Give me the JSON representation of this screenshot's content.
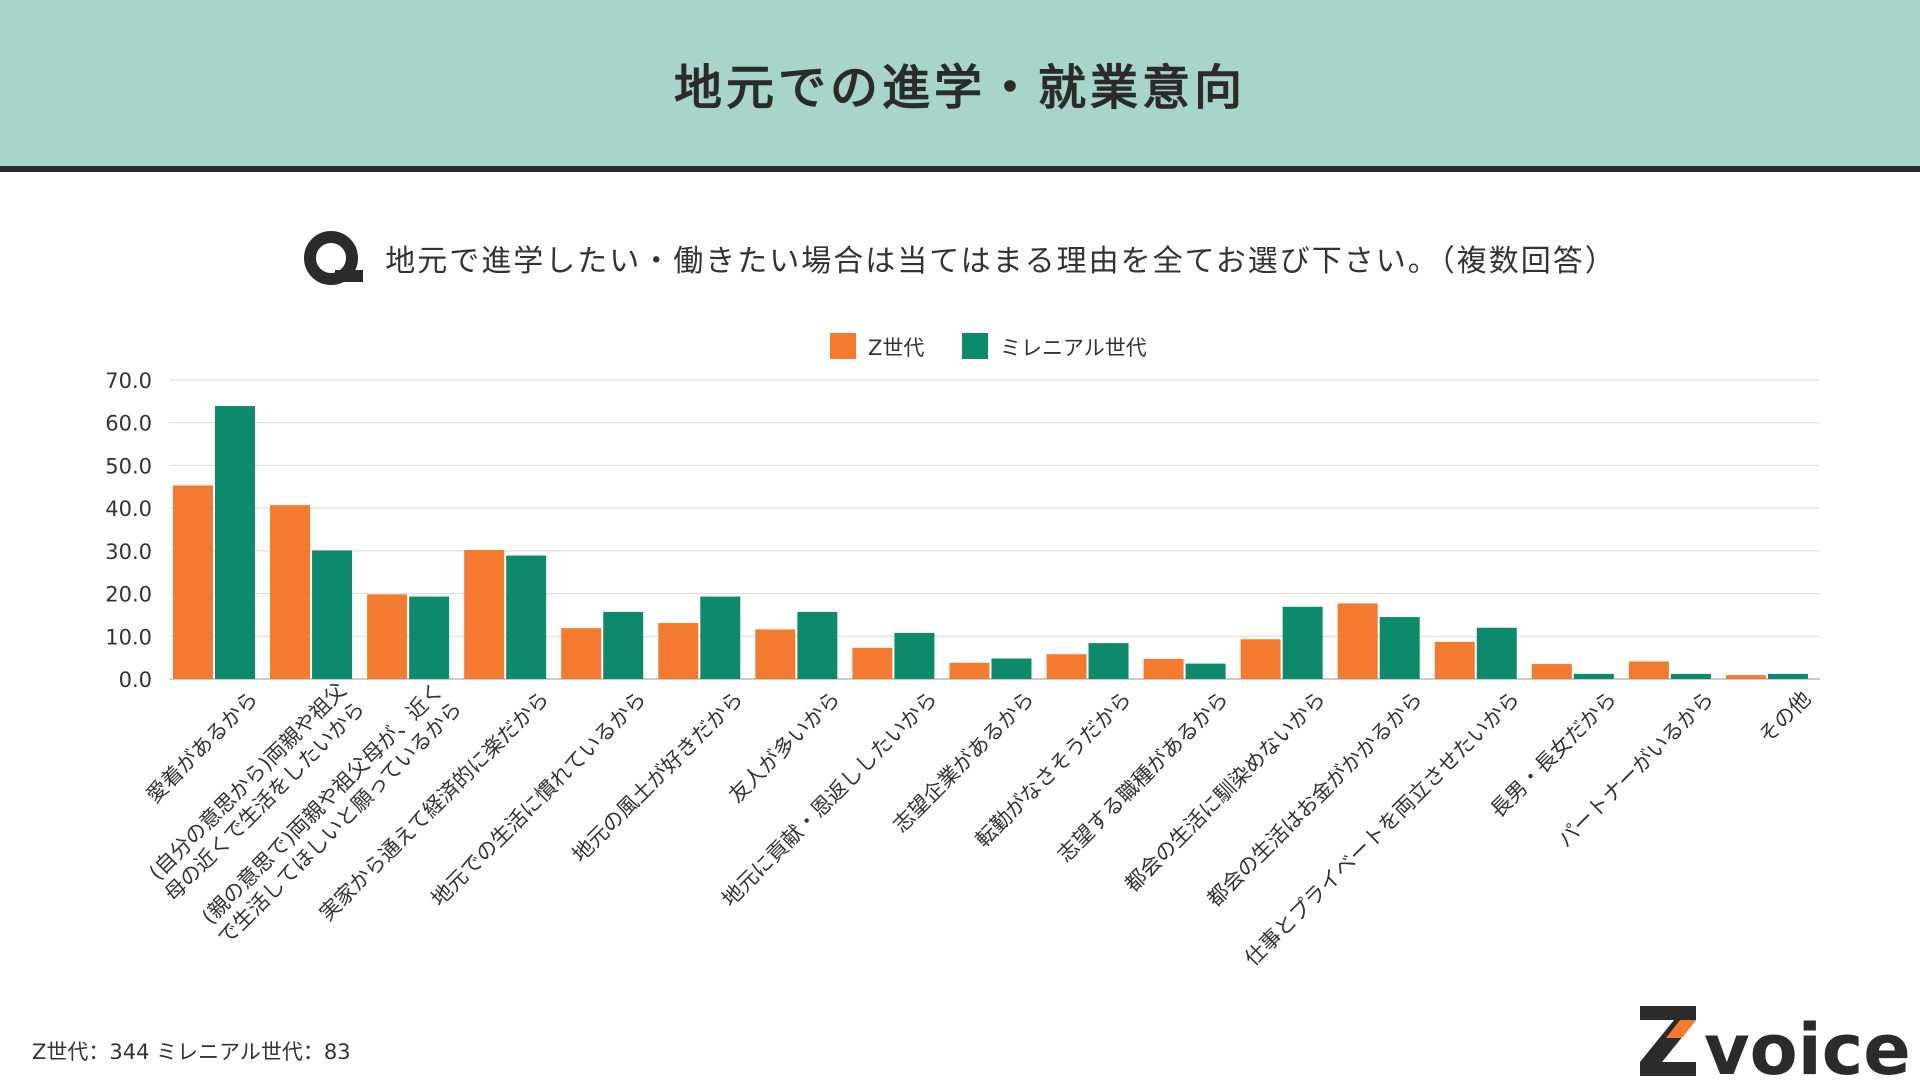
{
  "header": {
    "title": "地元での進学・就業意向"
  },
  "question": {
    "text": "地元で進学したい・働きたい場合は当てはまる理由を全てお選び下さい。（複数回答）"
  },
  "colors": {
    "z": "#f47a30",
    "millennial": "#0d8a6b",
    "header_bg": "#a7d5c9"
  },
  "chart_data": {
    "type": "bar",
    "title": "",
    "xlabel": "",
    "ylabel": "",
    "ylim": [
      0,
      70
    ],
    "yticks": [
      "70.0",
      "60.0",
      "50.0",
      "40.0",
      "30.0",
      "20.0",
      "10.0",
      "0.0"
    ],
    "grid": true,
    "legend_position": "top-center",
    "categories": [
      "愛着があるから",
      "(自分の意思から)両親や祖父|母の近くで生活をしたいから",
      "(親の意思で)両親や祖父母が、近く|で生活してほしいと願っているから",
      "実家から通えて経済的に楽だから",
      "地元での生活に慣れているから",
      "地元の風土が好きだから",
      "友人が多いから",
      "地元に貢献・恩返ししたいから",
      "志望企業があるから",
      "転勤がなさそうだから",
      "志望する職種があるから",
      "都会の生活に馴染めないから",
      "都会の生活はお金がかかるから",
      "仕事とプライベートを両立させたいから",
      "長男・長女だから",
      "パートナーがいるから",
      "その他"
    ],
    "series": [
      {
        "name": "Z世代",
        "values": [
          45.3,
          40.7,
          19.8,
          30.2,
          11.9,
          13.1,
          11.6,
          7.3,
          3.8,
          5.8,
          4.7,
          9.3,
          17.7,
          8.7,
          3.5,
          4.1,
          0.9
        ]
      },
      {
        "name": "ミレニアル世代",
        "values": [
          63.9,
          30.1,
          19.3,
          28.9,
          15.7,
          19.3,
          15.7,
          10.8,
          4.8,
          8.4,
          3.6,
          16.9,
          14.5,
          12.0,
          1.2,
          1.2,
          1.2
        ]
      }
    ]
  },
  "footnote": "Z世代：344  ミレニアル世代：83",
  "logo": {
    "text": "voice"
  }
}
